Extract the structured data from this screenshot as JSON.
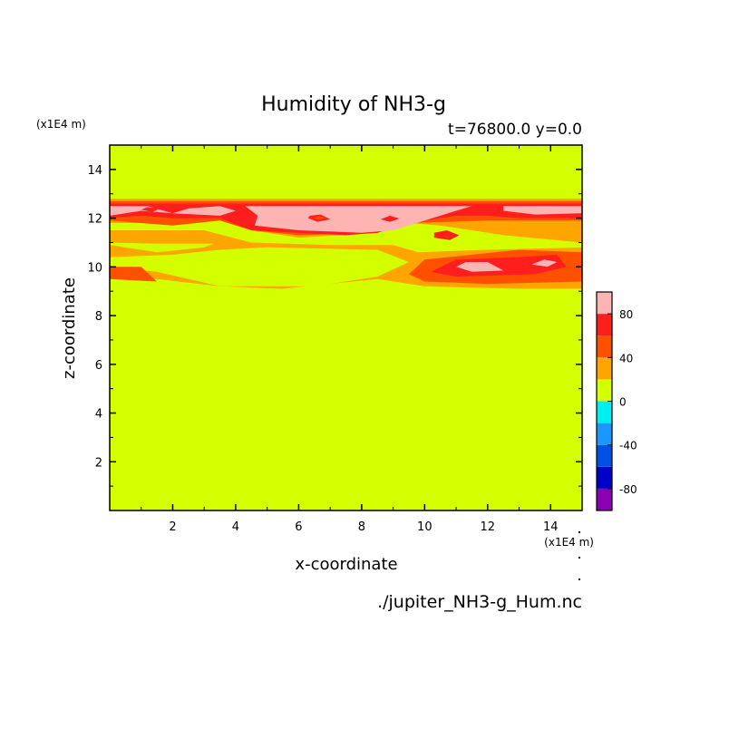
{
  "chart_data": {
    "type": "heatmap",
    "title": "Humidity of NH3-g",
    "subtitle": "t=76800.0 y=0.0",
    "xlabel": "x-coordinate",
    "ylabel": "z-coordinate",
    "x_unit": "(x1E4 m)",
    "y_unit": "(x1E4 m)",
    "source_label": "./jupiter_NH3-g_Hum.nc",
    "xlim": [
      0,
      15
    ],
    "ylim": [
      0,
      15
    ],
    "x_ticks": [
      2,
      4,
      6,
      8,
      10,
      12,
      14
    ],
    "y_ticks": [
      2,
      4,
      6,
      8,
      10,
      12,
      14
    ],
    "background_level": "0 to 20",
    "colorbar": {
      "levels": [
        -100,
        -80,
        -60,
        -40,
        -20,
        0,
        20,
        40,
        60,
        80,
        100
      ],
      "tick_labels": [
        "80",
        "40",
        "0",
        "-40",
        "-80"
      ],
      "tick_values": [
        80,
        40,
        0,
        -40,
        -80
      ],
      "colors": [
        "#8c00b4",
        "#0000c8",
        "#0050e6",
        "#1e96ff",
        "#00f0f0",
        "#d4ff00",
        "#ffa500",
        "#ff5000",
        "#ff1e1e",
        "#ffb4b4"
      ]
    },
    "regions": [
      {
        "level": "20 to 40",
        "color": "#ffa500",
        "points": [
          [
            0,
            9.6
          ],
          [
            1.5,
            9.5
          ],
          [
            3.5,
            9.2
          ],
          [
            5.5,
            9.1
          ],
          [
            6.2,
            9.2
          ],
          [
            8.5,
            9.5
          ],
          [
            10,
            9.2
          ],
          [
            13,
            9.1
          ],
          [
            15,
            9.1
          ],
          [
            15,
            11.5
          ],
          [
            11,
            11.2
          ],
          [
            9.5,
            11.3
          ],
          [
            8.5,
            11.8
          ],
          [
            7,
            11.3
          ],
          [
            5,
            11.1
          ],
          [
            4,
            11.3
          ],
          [
            3,
            10.8
          ],
          [
            1.5,
            10.6
          ],
          [
            0,
            10.9
          ]
        ]
      },
      {
        "level": "20 to 40",
        "color": "#ffa500",
        "points": [
          [
            0,
            11.0
          ],
          [
            1.5,
            10.95
          ],
          [
            3.5,
            10.95
          ],
          [
            4.5,
            11.0
          ],
          [
            15,
            11.1
          ],
          [
            15,
            12.8
          ],
          [
            0,
            12.8
          ]
        ]
      },
      {
        "level": "0 to 20",
        "color": "#d4ff00",
        "points": [
          [
            0,
            10.0
          ],
          [
            1.5,
            9.8
          ],
          [
            3.5,
            9.2
          ],
          [
            6.5,
            9.2
          ],
          [
            8.5,
            9.6
          ],
          [
            9.5,
            10.2
          ],
          [
            8.5,
            10.7
          ],
          [
            5,
            10.8
          ],
          [
            3.5,
            10.7
          ],
          [
            2,
            10.5
          ],
          [
            0,
            10.4
          ]
        ]
      },
      {
        "level": "0 to 20",
        "color": "#d4ff00",
        "points": [
          [
            0,
            11.5
          ],
          [
            3,
            11.5
          ],
          [
            4.5,
            11.0
          ],
          [
            7,
            10.9
          ],
          [
            9,
            10.9
          ],
          [
            9.8,
            10.6
          ],
          [
            12,
            10.7
          ],
          [
            15,
            10.8
          ],
          [
            15,
            11.0
          ],
          [
            12.5,
            11.3
          ],
          [
            10.5,
            11.7
          ],
          [
            9.5,
            11.8
          ],
          [
            8.5,
            11.4
          ],
          [
            6,
            11.2
          ],
          [
            4.5,
            11.5
          ],
          [
            3.5,
            11.9
          ],
          [
            2,
            11.8
          ],
          [
            0,
            11.8
          ]
        ]
      },
      {
        "level": "40 to 60",
        "color": "#ff5000",
        "points": [
          [
            0,
            9.5
          ],
          [
            1.5,
            9.4
          ],
          [
            1,
            10.0
          ],
          [
            0,
            10.0
          ]
        ]
      },
      {
        "level": "40 to 60",
        "color": "#ff5000",
        "points": [
          [
            9.5,
            9.7
          ],
          [
            10,
            9.4
          ],
          [
            12,
            9.3
          ],
          [
            15,
            9.4
          ],
          [
            15,
            10.6
          ],
          [
            13,
            10.7
          ],
          [
            10,
            10.3
          ]
        ]
      },
      {
        "level": "40 to 60",
        "color": "#ff5000",
        "points": [
          [
            0,
            11.9
          ],
          [
            2,
            11.7
          ],
          [
            3.5,
            11.9
          ],
          [
            4.5,
            11.5
          ],
          [
            6,
            11.3
          ],
          [
            8.5,
            11.4
          ],
          [
            9.5,
            11.8
          ],
          [
            12,
            11.9
          ],
          [
            15,
            11.9
          ],
          [
            15,
            12.7
          ],
          [
            0,
            12.7
          ]
        ]
      },
      {
        "level": "60 to 80",
        "color": "#ff1e1e",
        "points": [
          [
            10.2,
            9.8
          ],
          [
            11,
            9.6
          ],
          [
            13.5,
            9.7
          ],
          [
            14.5,
            10.0
          ],
          [
            14.2,
            10.5
          ],
          [
            13,
            10.4
          ],
          [
            11,
            10.3
          ]
        ]
      },
      {
        "level": "60 to 80",
        "color": "#ff1e1e",
        "points": [
          [
            10.3,
            11.2
          ],
          [
            10.8,
            11.1
          ],
          [
            11.1,
            11.3
          ],
          [
            10.7,
            11.5
          ],
          [
            10.3,
            11.4
          ]
        ]
      },
      {
        "level": "60 to 80",
        "color": "#ff1e1e",
        "points": [
          [
            0,
            12.0
          ],
          [
            1,
            12.1
          ],
          [
            2,
            12.0
          ],
          [
            3.5,
            12.0
          ],
          [
            4.5,
            11.5
          ],
          [
            6,
            11.4
          ],
          [
            7.5,
            11.3
          ],
          [
            8.5,
            11.4
          ],
          [
            9.5,
            11.8
          ],
          [
            11,
            12.1
          ],
          [
            12,
            12.1
          ],
          [
            13,
            12.0
          ],
          [
            14,
            12.0
          ],
          [
            15,
            12.0
          ],
          [
            15,
            12.6
          ],
          [
            0,
            12.6
          ]
        ]
      },
      {
        "level": "80 to 100",
        "color": "#ffb4b4",
        "points": [
          [
            11,
            10.0
          ],
          [
            11.5,
            9.8
          ],
          [
            12.5,
            9.85
          ],
          [
            12,
            10.2
          ],
          [
            11.3,
            10.2
          ]
        ]
      },
      {
        "level": "80 to 100",
        "color": "#ffb4b4",
        "points": [
          [
            13.4,
            10.1
          ],
          [
            13.9,
            10.0
          ],
          [
            14.2,
            10.2
          ],
          [
            13.8,
            10.3
          ]
        ]
      },
      {
        "level": "80 to 100",
        "color": "#ffb4b4",
        "points": [
          [
            0,
            12.1
          ],
          [
            1,
            12.3
          ],
          [
            2,
            12.2
          ],
          [
            1.2,
            12.5
          ],
          [
            0,
            12.5
          ]
        ]
      },
      {
        "level": "80 to 100",
        "color": "#ffb4b4",
        "points": [
          [
            2,
            12.2
          ],
          [
            3.5,
            12.1
          ],
          [
            4,
            12.3
          ],
          [
            3.5,
            12.5
          ],
          [
            2.5,
            12.4
          ]
        ]
      },
      {
        "level": "80 to 100",
        "color": "#ffb4b4",
        "points": [
          [
            4.6,
            11.7
          ],
          [
            6,
            11.5
          ],
          [
            8,
            11.4
          ],
          [
            9,
            11.5
          ],
          [
            10,
            11.9
          ],
          [
            11,
            12.3
          ],
          [
            11.5,
            12.5
          ],
          [
            7,
            12.5
          ],
          [
            4.3,
            12.5
          ],
          [
            4.7,
            12.1
          ]
        ]
      },
      {
        "level": "80 to 100",
        "color": "#ffb4b4",
        "points": [
          [
            12.5,
            12.3
          ],
          [
            13.5,
            12.15
          ],
          [
            15,
            12.2
          ],
          [
            15,
            12.5
          ],
          [
            12.5,
            12.5
          ]
        ]
      },
      {
        "level": "60 to 80",
        "color": "#ff1e1e",
        "points": [
          [
            6.3,
            12.0
          ],
          [
            6.6,
            11.85
          ],
          [
            7.0,
            11.95
          ],
          [
            6.7,
            12.15
          ],
          [
            6.35,
            12.1
          ]
        ]
      },
      {
        "level": "60 to 80",
        "color": "#ff1e1e",
        "points": [
          [
            8.6,
            11.95
          ],
          [
            8.9,
            11.85
          ],
          [
            9.2,
            11.98
          ],
          [
            8.9,
            12.1
          ]
        ]
      },
      {
        "level": "60 to 80",
        "color": "#ff1e1e",
        "points": [
          [
            1.0,
            12.35
          ],
          [
            1.35,
            12.25
          ],
          [
            1.6,
            12.4
          ],
          [
            1.2,
            12.45
          ]
        ]
      },
      {
        "level": "60 to 80",
        "color": "#ff1e1e",
        "points": [
          [
            11.7,
            12.3
          ],
          [
            12.0,
            12.22
          ],
          [
            12.3,
            12.35
          ],
          [
            12.0,
            12.45
          ]
        ]
      },
      {
        "level": "40 to 60",
        "color": "#ff5000",
        "points": [
          [
            6.45,
            12.0
          ],
          [
            6.65,
            11.95
          ],
          [
            6.85,
            12.02
          ],
          [
            6.65,
            12.08
          ]
        ]
      }
    ]
  }
}
